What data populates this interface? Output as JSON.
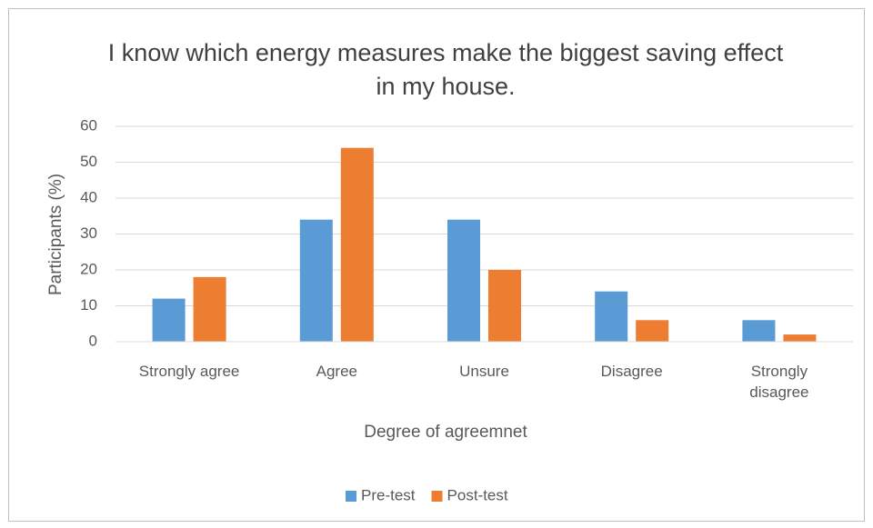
{
  "chart_data": {
    "type": "bar",
    "title": "I know which energy measures make the biggest saving effect in my house.",
    "x_label": "Degree of agreemnet",
    "y_label": "Participants (%)",
    "categories": [
      "Strongly agree",
      "Agree",
      "Unsure",
      "Disagree",
      "Strongly disagree"
    ],
    "series": [
      {
        "name": "Pre-test",
        "color": "#5b9bd5",
        "values": [
          12,
          34,
          34,
          14,
          6
        ]
      },
      {
        "name": "Post-test",
        "color": "#ed7d31",
        "values": [
          18,
          54,
          20,
          6,
          2
        ]
      }
    ],
    "ylim": [
      0,
      60
    ],
    "yticks": [
      0,
      10,
      20,
      30,
      40,
      50,
      60
    ],
    "grid": true,
    "legend": "bottom"
  }
}
